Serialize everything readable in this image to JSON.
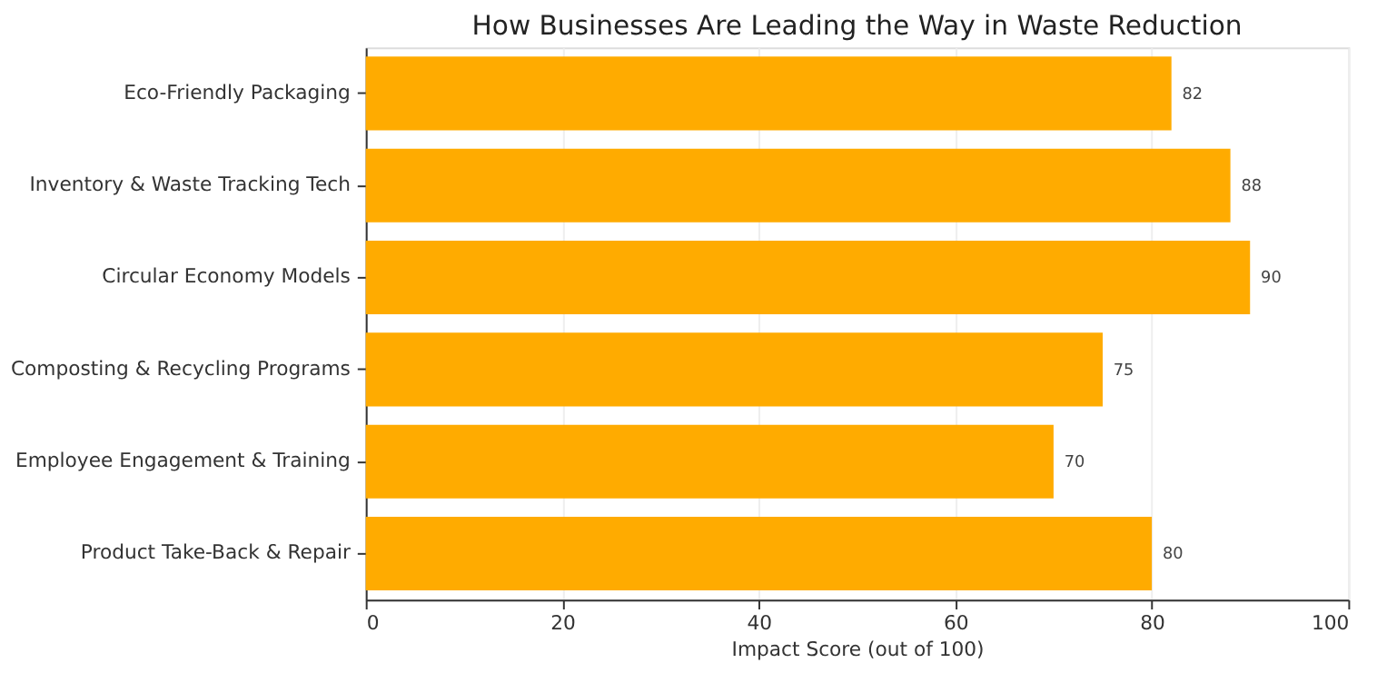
{
  "chart_data": {
    "type": "bar",
    "orientation": "horizontal",
    "title": "How Businesses Are Leading the Way in Waste Reduction",
    "xlabel": "Impact Score (out of 100)",
    "categories": [
      "Eco-Friendly Packaging",
      "Inventory & Waste Tracking Tech",
      "Circular Economy Models",
      "Composting & Recycling Programs",
      "Employee Engagement & Training",
      "Product Take-Back & Repair"
    ],
    "values": [
      82,
      88,
      90,
      75,
      70,
      80
    ],
    "color": "#ffab00",
    "xlim": [
      0,
      100
    ],
    "xticks": [
      0,
      20,
      40,
      60,
      80,
      100
    ],
    "grid": "x",
    "data_labels": true
  }
}
